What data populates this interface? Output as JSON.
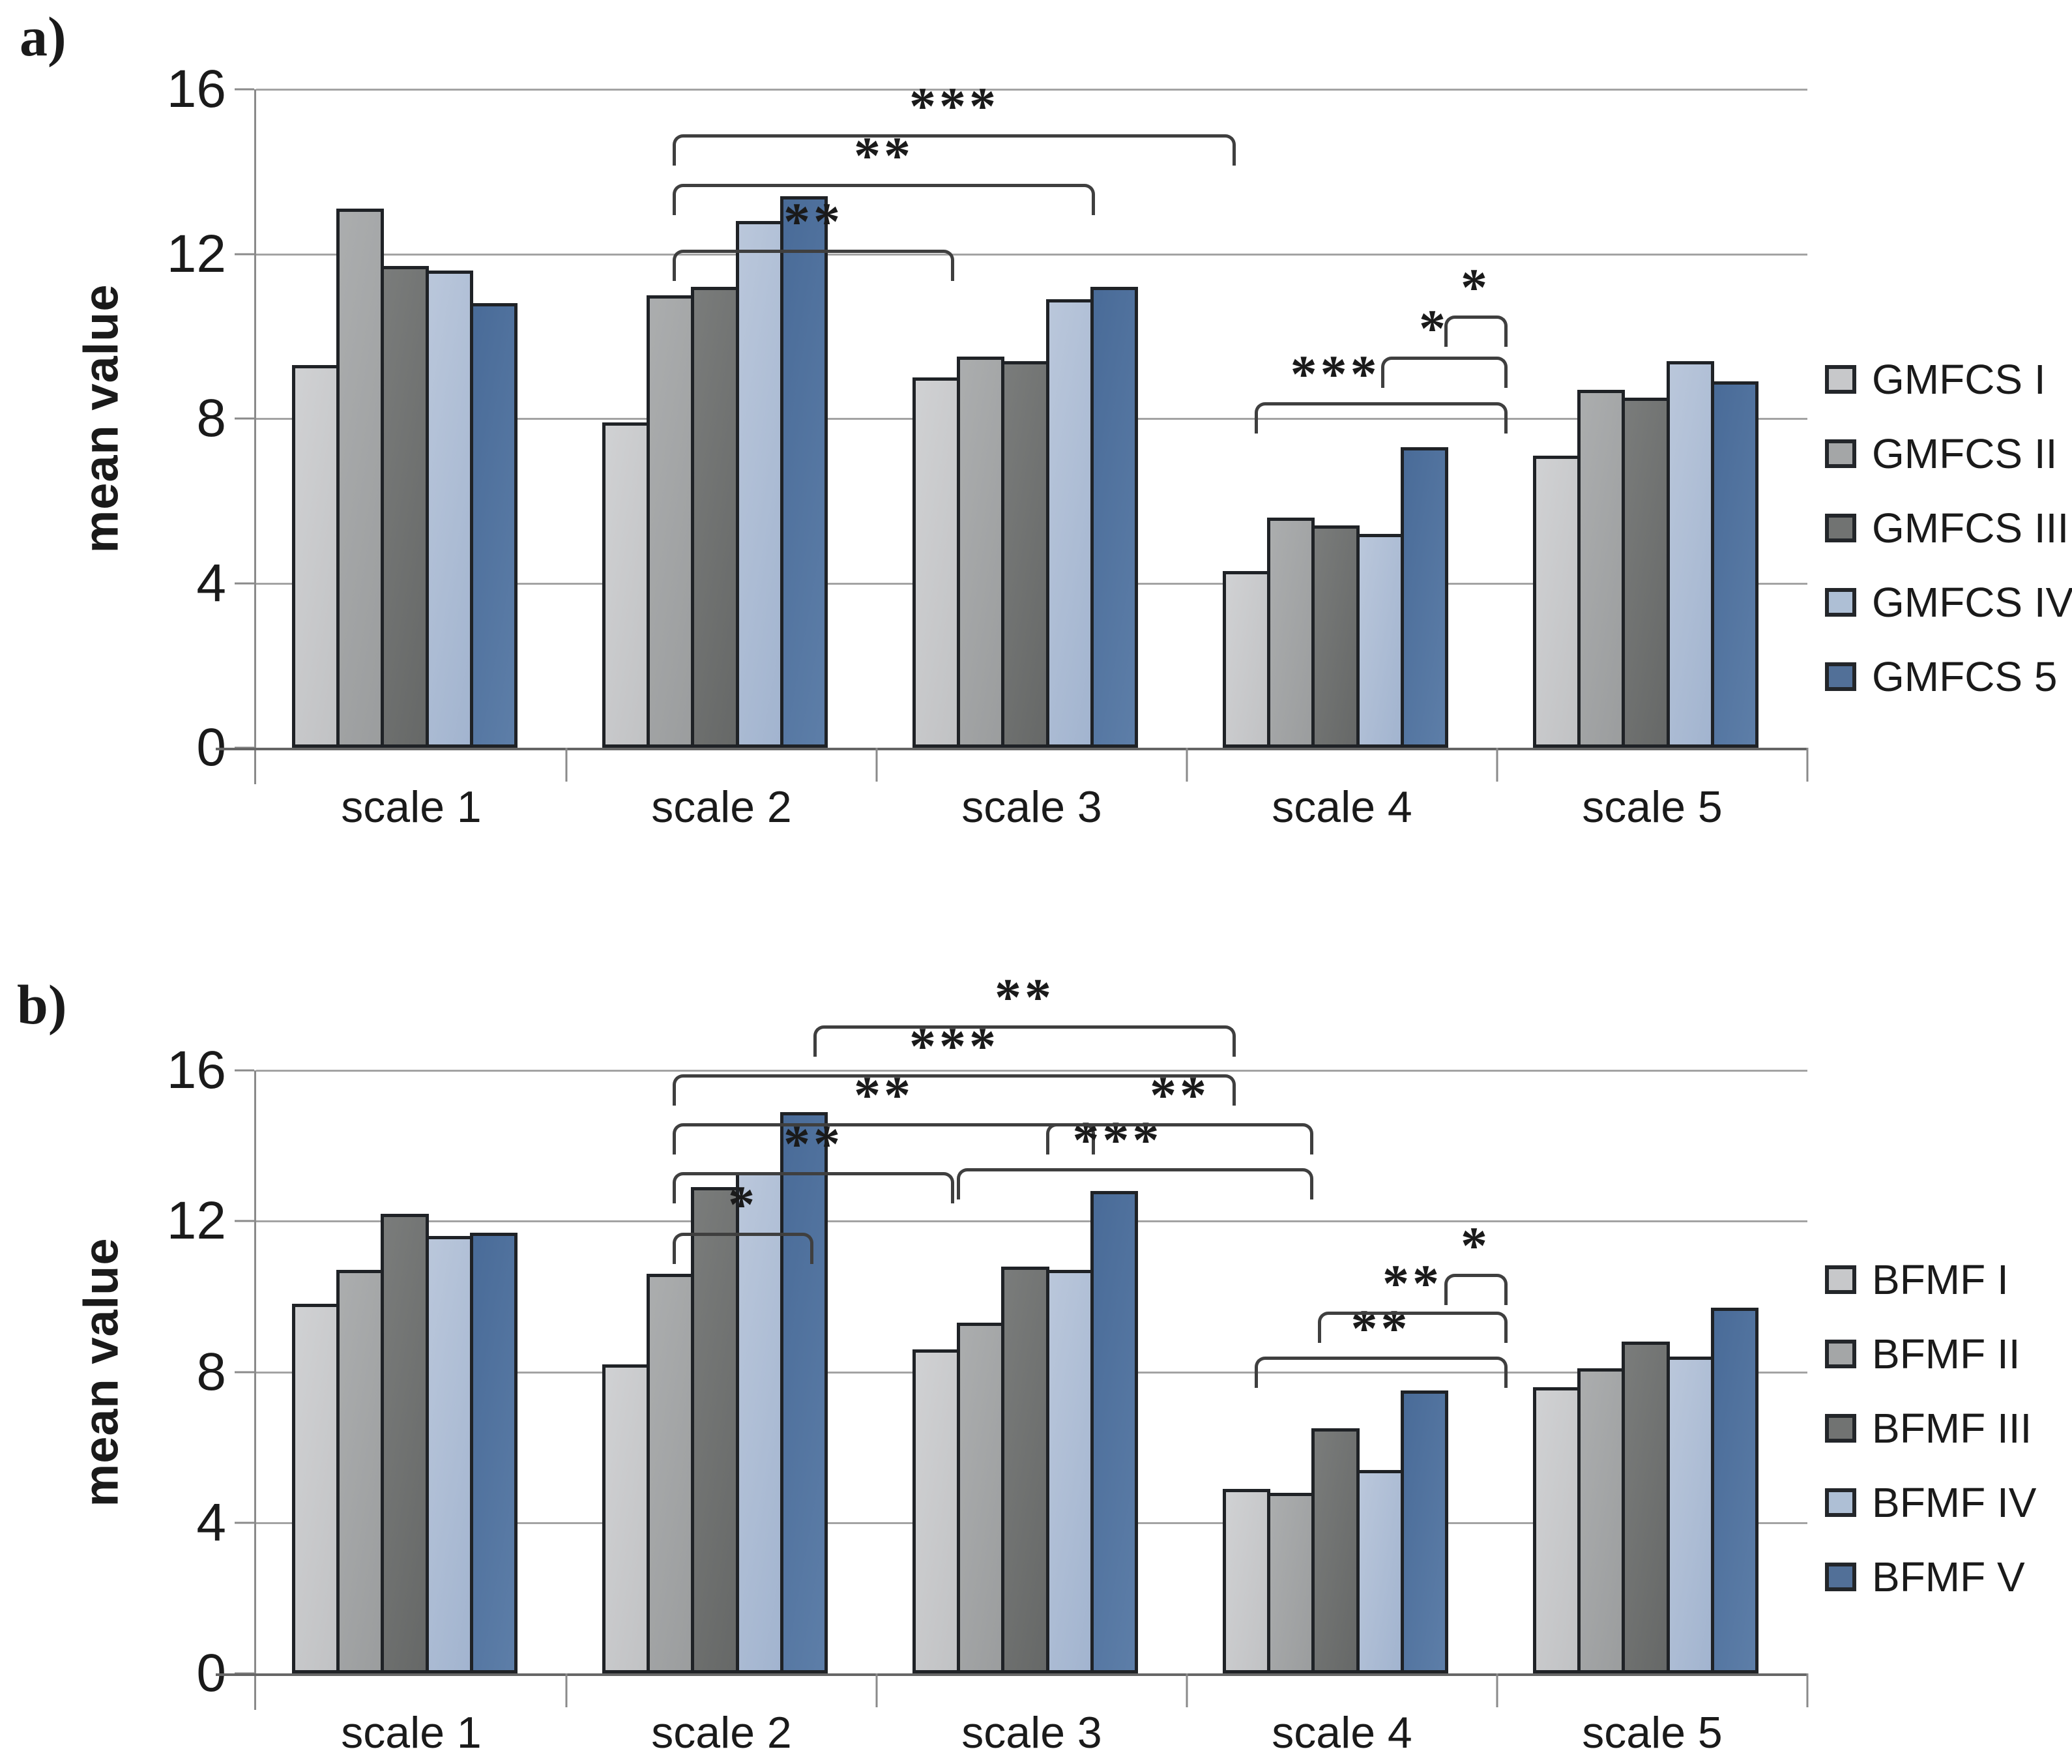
{
  "page": {
    "background": "#ffffff"
  },
  "colors": {
    "series_gradients": [
      [
        "#d0d1d3",
        "#c1c2c4"
      ],
      [
        "#abadae",
        "#9b9d9e"
      ],
      [
        "#7a7c7b",
        "#666867"
      ],
      [
        "#bac7db",
        "#a2b4cf"
      ],
      [
        "#496b98",
        "#5d7ea8"
      ]
    ],
    "swatch": [
      "#c7c8ca",
      "#a4a6a7",
      "#717372",
      "#aebfd5",
      "#527098"
    ],
    "bar_border": "#1f2226",
    "gridline": "#a3a3a3",
    "baseline": "#666666",
    "axis": "#8a8a8a",
    "bracket": "#3f3f3f",
    "text": "#1a1a1a"
  },
  "chart_data": [
    {
      "type": "bar",
      "panel_label": "a)",
      "ylabel": "mean value",
      "ylim": [
        0,
        16
      ],
      "yticks": [
        0,
        4,
        8,
        12,
        16
      ],
      "grid": true,
      "legend_position": "right",
      "categories": [
        "scale 1",
        "scale 2",
        "scale 3",
        "scale 4",
        "scale 5"
      ],
      "series": [
        {
          "name": "GMFCS I",
          "values": [
            9.3,
            7.9,
            9.0,
            4.3,
            7.1
          ]
        },
        {
          "name": "GMFCS II",
          "values": [
            13.1,
            11.0,
            9.5,
            5.6,
            8.7
          ]
        },
        {
          "name": "GMFCS III",
          "values": [
            11.7,
            11.2,
            9.4,
            5.4,
            8.5
          ]
        },
        {
          "name": "GMFCS IV",
          "values": [
            11.6,
            12.8,
            10.9,
            5.2,
            9.4
          ]
        },
        {
          "name": "GMFCS 5",
          "values": [
            10.8,
            13.4,
            11.2,
            7.3,
            8.9
          ]
        }
      ],
      "significance": [
        {
          "group": 1,
          "from": 0,
          "to": 2,
          "label": "**",
          "y": 12.1
        },
        {
          "group": 1,
          "from": 0,
          "to": 3,
          "label": "**",
          "y": 13.7
        },
        {
          "group": 1,
          "from": 0,
          "to": 4,
          "label": "***",
          "y": 14.9
        },
        {
          "group": 3,
          "from": 0,
          "to": 4,
          "label": "***",
          "y": 8.4,
          "lx": 0.32
        },
        {
          "group": 3,
          "from": 2,
          "to": 4,
          "label": "*",
          "y": 9.5,
          "lx": 0.42
        },
        {
          "group": 3,
          "from": 3,
          "to": 4,
          "label": "*",
          "y": 10.5
        }
      ]
    },
    {
      "type": "bar",
      "panel_label": "b)",
      "ylabel": "mean value",
      "ylim": [
        0,
        16
      ],
      "yticks": [
        0,
        4,
        8,
        12,
        16
      ],
      "grid": true,
      "legend_position": "right",
      "categories": [
        "scale 1",
        "scale 2",
        "scale 3",
        "scale 4",
        "scale 5"
      ],
      "series": [
        {
          "name": "BFMF I",
          "values": [
            9.8,
            8.2,
            8.6,
            4.9,
            7.6
          ]
        },
        {
          "name": "BFMF II",
          "values": [
            10.7,
            10.6,
            9.3,
            4.8,
            8.1
          ]
        },
        {
          "name": "BFMF III",
          "values": [
            12.2,
            12.9,
            10.8,
            6.5,
            8.8
          ]
        },
        {
          "name": "BFMF IV",
          "values": [
            11.6,
            13.3,
            10.7,
            5.4,
            8.4
          ]
        },
        {
          "name": "BFMF V",
          "values": [
            11.7,
            14.9,
            12.8,
            7.5,
            9.7
          ]
        }
      ],
      "significance": [
        {
          "group": 1,
          "from": 0,
          "to": 1,
          "label": "*",
          "y": 11.7
        },
        {
          "group": 1,
          "from": 0,
          "to": 2,
          "label": "**",
          "y": 13.3
        },
        {
          "group": 1,
          "from": 0,
          "to": 3,
          "label": "**",
          "y": 14.6
        },
        {
          "group": 1,
          "from": 0,
          "to": 4,
          "label": "***",
          "y": 15.9
        },
        {
          "group": 1,
          "from": 1,
          "to": 4,
          "label": "**",
          "y": 17.2
        },
        {
          "group": 2,
          "from": 0,
          "to": 4,
          "label": "***",
          "y": 13.4,
          "lx": 0.45
        },
        {
          "group": 2,
          "from": 1,
          "to": 4,
          "label": "**",
          "y": 14.6
        },
        {
          "group": 3,
          "from": 0,
          "to": 4,
          "label": "**",
          "y": 8.4
        },
        {
          "group": 3,
          "from": 1,
          "to": 4,
          "label": "**",
          "y": 9.6
        },
        {
          "group": 3,
          "from": 3,
          "to": 4,
          "label": "*",
          "y": 10.6
        }
      ]
    }
  ]
}
